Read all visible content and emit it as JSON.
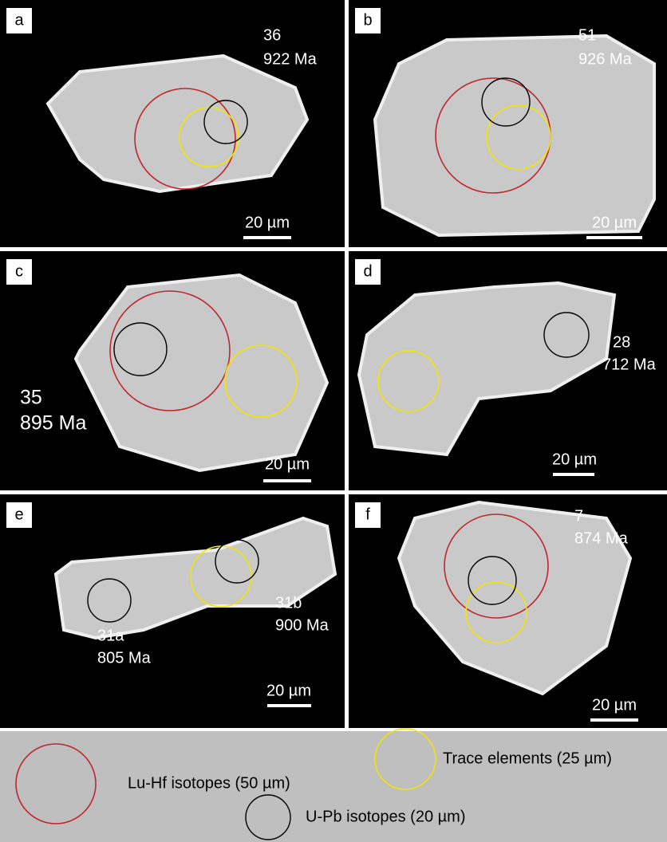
{
  "panels": [
    {
      "label": "a",
      "annotations": [
        [
          "36",
          "922 Ma"
        ]
      ],
      "scale": "20 µm"
    },
    {
      "label": "b",
      "annotations": [
        [
          "51",
          "926 Ma"
        ]
      ],
      "scale": "20 µm"
    },
    {
      "label": "c",
      "annotations": [
        [
          "35",
          "895 Ma"
        ]
      ],
      "scale": "20 µm"
    },
    {
      "label": "d",
      "annotations": [
        [
          "28",
          "712 Ma"
        ]
      ],
      "scale": "20 µm"
    },
    {
      "label": "e",
      "annotations": [
        [
          "31a",
          "805 Ma"
        ],
        [
          "31b",
          "900 Ma"
        ]
      ],
      "scale": "20 µm"
    },
    {
      "label": "f",
      "annotations": [
        [
          "7",
          "874 Ma"
        ]
      ],
      "scale": "20 µm"
    }
  ],
  "legend": [
    {
      "label": "Lu-Hf isotopes (50 µm)"
    },
    {
      "label": "Trace elements (25 µm)"
    },
    {
      "label": "U-Pb isotopes (20 µm)"
    }
  ]
}
